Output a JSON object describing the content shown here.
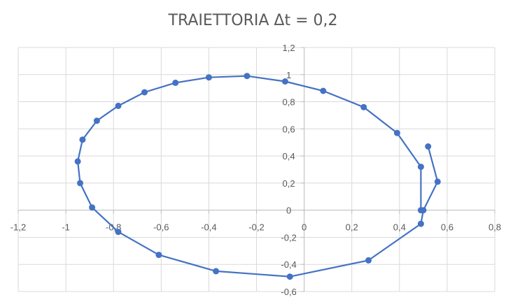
{
  "chart_data": {
    "type": "scatter",
    "title": "TRAIETTORIA  Δt = 0,2",
    "xlabel": "",
    "ylabel": "",
    "xlim": [
      -1.2,
      0.8
    ],
    "ylim": [
      -0.6,
      1.2
    ],
    "x_ticks": [
      "-1,2",
      "-1",
      "-0,8",
      "-0,6",
      "-0,4",
      "-0,2",
      "0",
      "0,2",
      "0,4",
      "0,6",
      "0,8"
    ],
    "y_ticks": [
      "-0,6",
      "-0,4",
      "-0,2",
      "0",
      "0,2",
      "0,4",
      "0,6",
      "0,8",
      "1",
      "1,2"
    ],
    "grid": true,
    "line_color": "#4472c4",
    "series": [
      {
        "values": [
          [
            0.52,
            0.47
          ],
          [
            0.56,
            0.21
          ],
          [
            0.5,
            0.0
          ],
          [
            0.49,
            -0.1
          ],
          [
            0.27,
            -0.37
          ],
          [
            -0.06,
            -0.49
          ],
          [
            -0.37,
            -0.45
          ],
          [
            -0.61,
            -0.33
          ],
          [
            -0.78,
            -0.16
          ],
          [
            -0.89,
            0.02
          ],
          [
            -0.94,
            0.2
          ],
          [
            -0.95,
            0.36
          ],
          [
            -0.93,
            0.52
          ],
          [
            -0.87,
            0.66
          ],
          [
            -0.78,
            0.77
          ],
          [
            -0.67,
            0.87
          ],
          [
            -0.54,
            0.94
          ],
          [
            -0.4,
            0.98
          ],
          [
            -0.24,
            0.99
          ],
          [
            -0.08,
            0.95
          ],
          [
            0.08,
            0.88
          ],
          [
            0.25,
            0.76
          ],
          [
            0.39,
            0.57
          ],
          [
            0.49,
            0.32
          ],
          [
            0.49,
            0.0
          ]
        ]
      }
    ]
  }
}
